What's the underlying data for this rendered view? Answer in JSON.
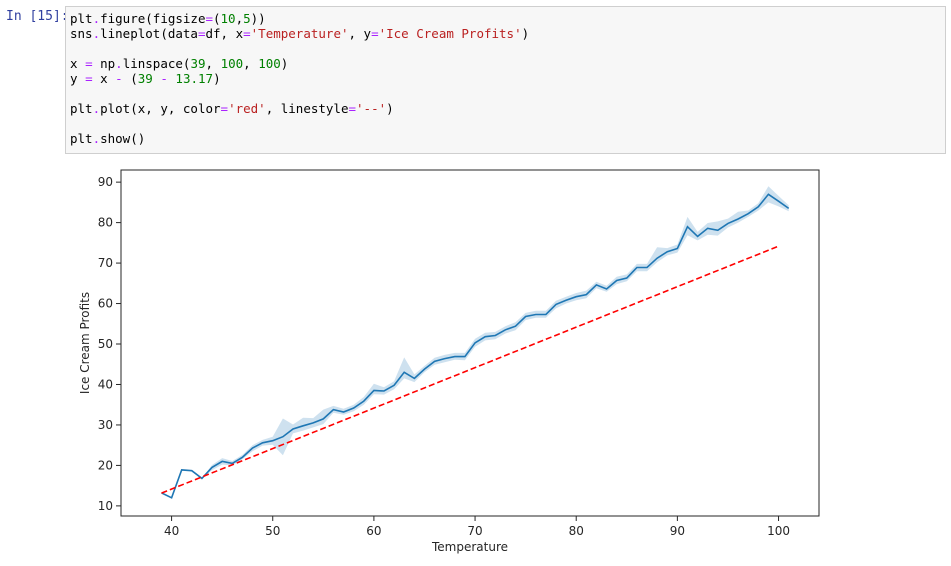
{
  "cell": {
    "prompt": "In [15]:",
    "code_lines": [
      [
        {
          "t": "plt",
          "c": "name"
        },
        {
          "t": ".",
          "c": "op"
        },
        {
          "t": "figure(figsize",
          "c": "name"
        },
        {
          "t": "=",
          "c": "op"
        },
        {
          "t": "(",
          "c": "name"
        },
        {
          "t": "10",
          "c": "num"
        },
        {
          "t": ",",
          "c": "name"
        },
        {
          "t": "5",
          "c": "num"
        },
        {
          "t": "))",
          "c": "name"
        }
      ],
      [
        {
          "t": "sns",
          "c": "name"
        },
        {
          "t": ".",
          "c": "op"
        },
        {
          "t": "lineplot(data",
          "c": "name"
        },
        {
          "t": "=",
          "c": "op"
        },
        {
          "t": "df, x",
          "c": "name"
        },
        {
          "t": "=",
          "c": "op"
        },
        {
          "t": "'Temperature'",
          "c": "str"
        },
        {
          "t": ", y",
          "c": "name"
        },
        {
          "t": "=",
          "c": "op"
        },
        {
          "t": "'Ice Cream Profits'",
          "c": "str"
        },
        {
          "t": ")",
          "c": "name"
        }
      ],
      [],
      [
        {
          "t": "x ",
          "c": "name"
        },
        {
          "t": "=",
          "c": "op"
        },
        {
          "t": " np",
          "c": "name"
        },
        {
          "t": ".",
          "c": "op"
        },
        {
          "t": "linspace(",
          "c": "name"
        },
        {
          "t": "39",
          "c": "num"
        },
        {
          "t": ", ",
          "c": "name"
        },
        {
          "t": "100",
          "c": "num"
        },
        {
          "t": ", ",
          "c": "name"
        },
        {
          "t": "100",
          "c": "num"
        },
        {
          "t": ")",
          "c": "name"
        }
      ],
      [
        {
          "t": "y ",
          "c": "name"
        },
        {
          "t": "=",
          "c": "op"
        },
        {
          "t": " x ",
          "c": "name"
        },
        {
          "t": "-",
          "c": "op"
        },
        {
          "t": " (",
          "c": "name"
        },
        {
          "t": "39",
          "c": "num"
        },
        {
          "t": " ",
          "c": "name"
        },
        {
          "t": "-",
          "c": "op"
        },
        {
          "t": " ",
          "c": "name"
        },
        {
          "t": "13.17",
          "c": "num"
        },
        {
          "t": ")",
          "c": "name"
        }
      ],
      [],
      [
        {
          "t": "plt",
          "c": "name"
        },
        {
          "t": ".",
          "c": "op"
        },
        {
          "t": "plot(x, y, color",
          "c": "name"
        },
        {
          "t": "=",
          "c": "op"
        },
        {
          "t": "'red'",
          "c": "str"
        },
        {
          "t": ", linestyle",
          "c": "name"
        },
        {
          "t": "=",
          "c": "op"
        },
        {
          "t": "'--'",
          "c": "str"
        },
        {
          "t": ")",
          "c": "name"
        }
      ],
      [],
      [
        {
          "t": "plt",
          "c": "name"
        },
        {
          "t": ".",
          "c": "op"
        },
        {
          "t": "show()",
          "c": "name"
        }
      ]
    ]
  },
  "chart_data": {
    "type": "line",
    "title": "",
    "xlabel": "Temperature",
    "ylabel": "Ice Cream Profits",
    "xlim": [
      35,
      104
    ],
    "ylim": [
      7.5,
      93
    ],
    "xticks": [
      40,
      50,
      60,
      70,
      80,
      90,
      100
    ],
    "yticks": [
      10,
      20,
      30,
      40,
      50,
      60,
      70,
      80,
      90
    ],
    "grid": false,
    "series": [
      {
        "color": "#1f77b4",
        "style": "solid",
        "ci_color": "#1f77b4",
        "x": [
          39,
          40,
          41,
          42,
          43,
          44,
          45,
          46,
          47,
          48,
          49,
          50,
          51,
          52,
          53,
          54,
          55,
          56,
          57,
          58,
          59,
          60,
          61,
          62,
          63,
          64,
          65,
          66,
          67,
          68,
          69,
          70,
          71,
          72,
          73,
          74,
          75,
          76,
          77,
          78,
          79,
          80,
          81,
          82,
          83,
          84,
          85,
          86,
          87,
          88,
          89,
          90,
          91,
          92,
          93,
          94,
          95,
          96,
          97,
          98,
          99,
          100,
          101
        ],
        "y": [
          13.2,
          12,
          18.9,
          18.7,
          16.8,
          19.5,
          21,
          20.5,
          22,
          24.3,
          25.6,
          26.1,
          27.1,
          29,
          29.8,
          30.5,
          31.5,
          33.8,
          33.2,
          34.2,
          35.9,
          38.5,
          38.4,
          39.8,
          43,
          41.5,
          43.8,
          45.7,
          46.4,
          46.9,
          46.9,
          50.3,
          51.8,
          52.1,
          53.5,
          54.4,
          56.8,
          57.3,
          57.3,
          59.8,
          60.8,
          61.7,
          62.2,
          64.6,
          63.6,
          65.7,
          66.3,
          68.9,
          68.9,
          71.2,
          72.8,
          73.6,
          79,
          76.6,
          78.6,
          78.1,
          79.8,
          80.9,
          82.2,
          83.9,
          87,
          85.3,
          83.5
        ],
        "ci_lower": [
          13.2,
          12,
          18.9,
          18.7,
          16.8,
          18.8,
          20.2,
          20,
          21.5,
          23.5,
          24.9,
          25.1,
          22.5,
          27.9,
          28.6,
          29.4,
          30.2,
          33,
          32.5,
          33.4,
          35,
          37.6,
          37.5,
          38.8,
          41.5,
          40.6,
          43,
          44.9,
          45.5,
          46.1,
          46,
          49.3,
          50.9,
          51.2,
          52.6,
          53.4,
          55.9,
          56.5,
          56.5,
          58.8,
          60,
          60.8,
          61.3,
          63.8,
          62.9,
          64.8,
          65.5,
          68,
          68,
          70.2,
          71.9,
          72.6,
          76.9,
          75.6,
          77,
          76.8,
          78.8,
          80,
          81.4,
          83,
          85,
          84,
          82.8
        ],
        "ci_upper": [
          13.2,
          12,
          18.9,
          18.7,
          16.8,
          20.1,
          21.8,
          21.1,
          22.6,
          25,
          26.3,
          27.1,
          31.6,
          30.1,
          31.8,
          31.7,
          33.8,
          34.7,
          34,
          35,
          36.9,
          40.2,
          39.3,
          40.8,
          46.7,
          42.5,
          44.6,
          46.6,
          47.3,
          47.8,
          47.8,
          51.3,
          52.8,
          53,
          54.4,
          55.4,
          57.7,
          58.2,
          58.2,
          60.7,
          61.7,
          62.6,
          63.2,
          65.4,
          64.4,
          66.6,
          67.2,
          69.8,
          69.8,
          73.9,
          73.7,
          74.6,
          81.4,
          77.7,
          79.9,
          80.3,
          81,
          82.7,
          83,
          84.8,
          89,
          86.6,
          84.3
        ]
      },
      {
        "color": "#ff0000",
        "style": "dashed",
        "x": [
          39,
          100
        ],
        "y": [
          13.17,
          74.17
        ]
      }
    ]
  }
}
